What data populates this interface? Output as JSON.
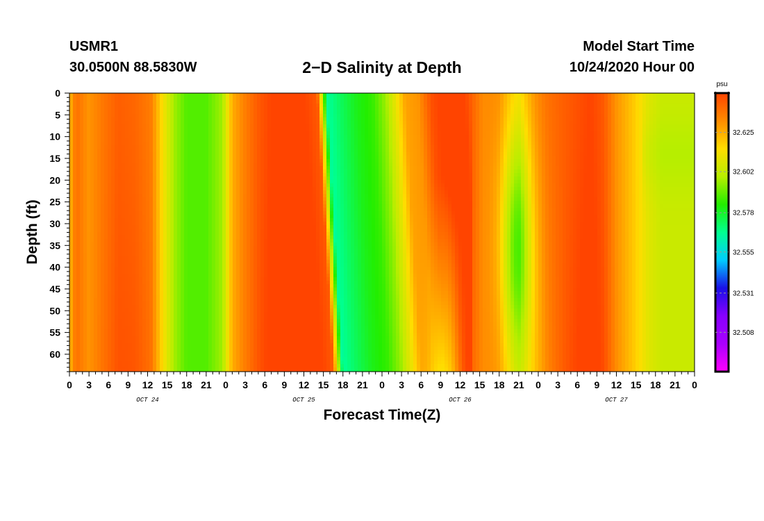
{
  "header": {
    "station": "USMR1",
    "coordinates": "30.0500N 88.5830W",
    "title": "2−D Salinity at Depth",
    "model_start_label": "Model Start Time",
    "model_start_value": "10/24/2020 Hour 00"
  },
  "chart_data": {
    "type": "heatmap",
    "title": "2−D Salinity at Depth",
    "xlabel": "Forecast Time(Z)",
    "ylabel": "Depth (ft)",
    "x_ticks": [
      "0",
      "3",
      "6",
      "9",
      "12",
      "15",
      "18",
      "21",
      "0",
      "3",
      "6",
      "9",
      "12",
      "15",
      "18",
      "21",
      "0",
      "3",
      "6",
      "9",
      "12",
      "15",
      "18",
      "21",
      "0",
      "3",
      "6",
      "9",
      "12",
      "15",
      "18",
      "21",
      "0"
    ],
    "x_range_hours": [
      0,
      96
    ],
    "day_labels": [
      {
        "label": "OCT 24",
        "hour": 12
      },
      {
        "label": "OCT 25",
        "hour": 36
      },
      {
        "label": "OCT 26",
        "hour": 60
      },
      {
        "label": "OCT 27",
        "hour": 84
      }
    ],
    "y_ticks": [
      "0",
      "5",
      "10",
      "15",
      "20",
      "25",
      "30",
      "35",
      "40",
      "45",
      "50",
      "55",
      "60"
    ],
    "y_range_ft": [
      0,
      64
    ],
    "colorbar": {
      "unit": "psu",
      "ticks": [
        "32.625",
        "32.602",
        "32.578",
        "32.555",
        "32.531",
        "32.508"
      ],
      "tick_values": [
        32.625,
        32.602,
        32.578,
        32.555,
        32.531,
        32.508
      ],
      "range": [
        32.485,
        32.648
      ],
      "colors": [
        "#ff00ff",
        "#aa00ff",
        "#8800ff",
        "#1a10e8",
        "#00ccff",
        "#00ff90",
        "#22ee00",
        "#b8ee00",
        "#ffdd00",
        "#ff8c00",
        "#ff4400"
      ]
    },
    "surface_profile": [
      {
        "hour": 0.0,
        "value": 32.622
      },
      {
        "hour": 1.0,
        "value": 32.638
      },
      {
        "hour": 3.0,
        "value": 32.63
      },
      {
        "hour": 5.0,
        "value": 32.636
      },
      {
        "hour": 7.5,
        "value": 32.642
      },
      {
        "hour": 10.0,
        "value": 32.64
      },
      {
        "hour": 12.5,
        "value": 32.635
      },
      {
        "hour": 14.5,
        "value": 32.612
      },
      {
        "hour": 16.0,
        "value": 32.597
      },
      {
        "hour": 18.0,
        "value": 32.588
      },
      {
        "hour": 21.0,
        "value": 32.588
      },
      {
        "hour": 23.5,
        "value": 32.597
      },
      {
        "hour": 25.0,
        "value": 32.625
      },
      {
        "hour": 27.0,
        "value": 32.635
      },
      {
        "hour": 29.0,
        "value": 32.643
      },
      {
        "hour": 31.0,
        "value": 32.648
      },
      {
        "hour": 33.5,
        "value": 32.648
      },
      {
        "hour": 36.0,
        "value": 32.648
      },
      {
        "hour": 38.0,
        "value": 32.643
      },
      {
        "hour": 39.5,
        "value": 32.565
      },
      {
        "hour": 41.5,
        "value": 32.572
      },
      {
        "hour": 44.0,
        "value": 32.58
      },
      {
        "hour": 46.5,
        "value": 32.585
      },
      {
        "hour": 48.5,
        "value": 32.596
      },
      {
        "hour": 50.0,
        "value": 32.61
      },
      {
        "hour": 51.5,
        "value": 32.627
      },
      {
        "hour": 53.5,
        "value": 32.63
      },
      {
        "hour": 55.5,
        "value": 32.645
      },
      {
        "hour": 58.0,
        "value": 32.652
      },
      {
        "hour": 60.0,
        "value": 32.652
      },
      {
        "hour": 61.5,
        "value": 32.643
      },
      {
        "hour": 63.5,
        "value": 32.632
      },
      {
        "hour": 66.0,
        "value": 32.633
      },
      {
        "hour": 69.0,
        "value": 32.62
      },
      {
        "hour": 71.5,
        "value": 32.632
      },
      {
        "hour": 73.5,
        "value": 32.638
      },
      {
        "hour": 76.0,
        "value": 32.642
      },
      {
        "hour": 78.0,
        "value": 32.645
      },
      {
        "hour": 80.0,
        "value": 32.648
      },
      {
        "hour": 82.0,
        "value": 32.643
      },
      {
        "hour": 84.0,
        "value": 32.63
      },
      {
        "hour": 86.5,
        "value": 32.62
      },
      {
        "hour": 89.0,
        "value": 32.608
      },
      {
        "hour": 91.0,
        "value": 32.603
      },
      {
        "hour": 93.5,
        "value": 32.603
      },
      {
        "hour": 96.0,
        "value": 32.603
      }
    ]
  }
}
